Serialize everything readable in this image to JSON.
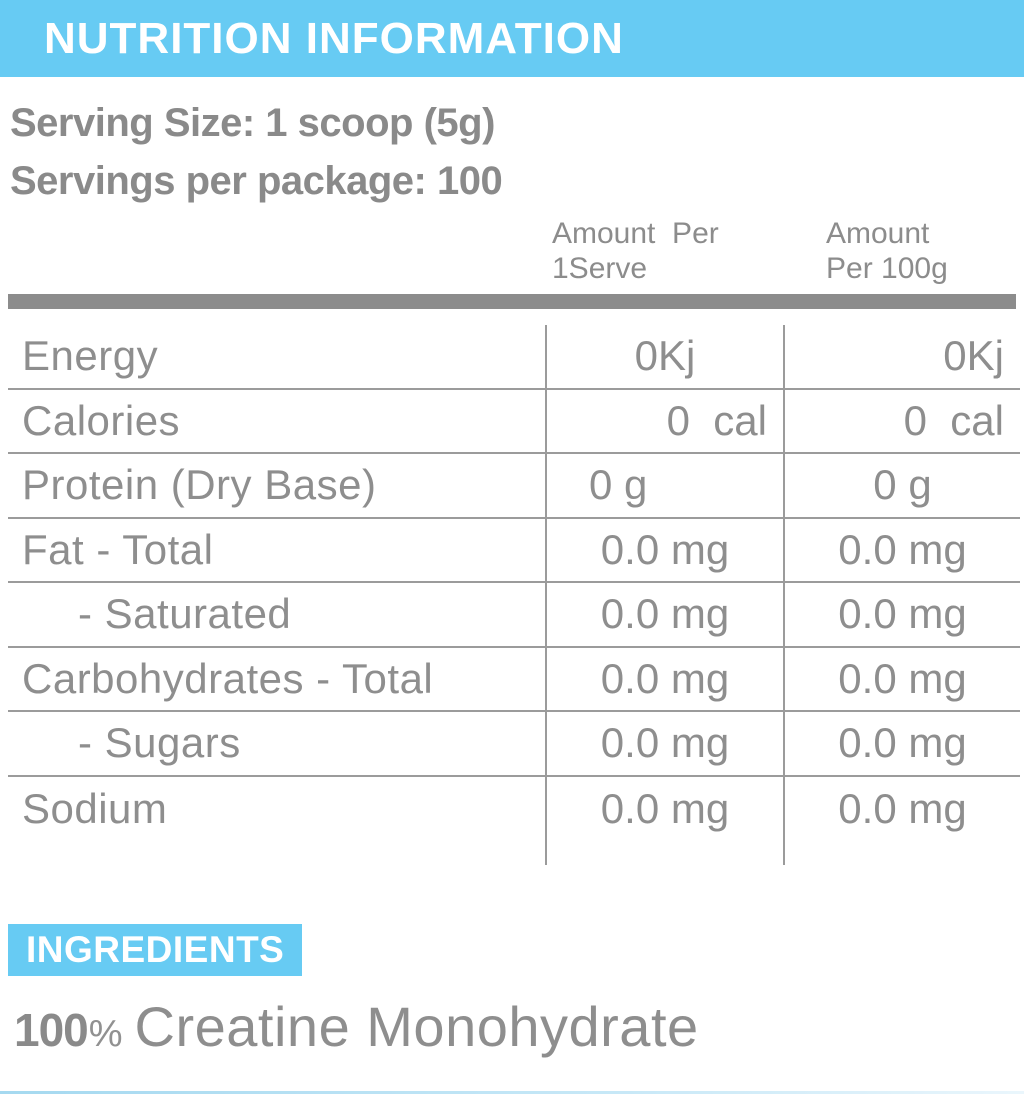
{
  "header": {
    "title": "NUTRITION INFORMATION"
  },
  "serving": {
    "size": "Serving Size: 1 scoop (5g)",
    "per_package": "Servings per package: 100"
  },
  "nutrition_table": {
    "columns": [
      {
        "line1": "Amount  Per",
        "line2": "1Serve"
      },
      {
        "line1": "Amount",
        "line2": "Per 100g"
      }
    ],
    "rows": [
      {
        "label": "Energy",
        "per_serve": "0Kj",
        "per_100g": "0Kj"
      },
      {
        "label": "Calories",
        "per_serve": "0  cal",
        "per_100g": "0  cal"
      },
      {
        "label": "Protein (Dry Base)",
        "per_serve": "0 g",
        "per_100g": "0 g"
      },
      {
        "label": "Fat - Total",
        "per_serve": "0.0 mg",
        "per_100g": "0.0 mg"
      },
      {
        "label": "- Saturated",
        "per_serve": "0.0 mg",
        "per_100g": "0.0 mg"
      },
      {
        "label": "Carbohydrates - Total",
        "per_serve": "0.0 mg",
        "per_100g": "0.0 mg"
      },
      {
        "label": "- Sugars",
        "per_serve": "0.0 mg",
        "per_100g": "0.0 mg"
      },
      {
        "label": "Sodium",
        "per_serve": "0.0 mg",
        "per_100g": "0.0 mg"
      }
    ]
  },
  "ingredients": {
    "heading": "INGREDIENTS",
    "amount": "100",
    "percent_sign": "%",
    "name": "Creatine Monohydrate"
  },
  "colors": {
    "accent_blue": "#67CBF3",
    "text_gray": "#8C8C8C",
    "rule_gray": "#9B9B9B"
  }
}
